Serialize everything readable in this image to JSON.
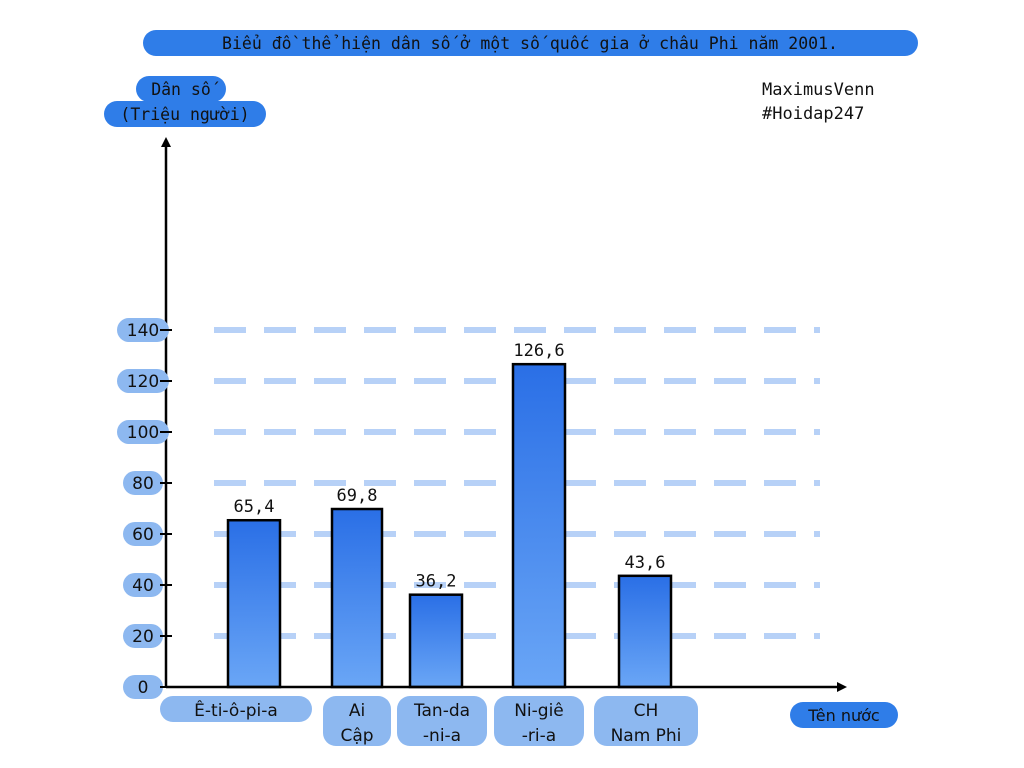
{
  "credit": {
    "author": "MaximusVenn",
    "tag": "#Hoidap247"
  },
  "colors": {
    "accent": "#2f7de8",
    "tick_pill": "#8db8f0",
    "grid": "#b7d1f7",
    "bar_top": "#2a6fe6",
    "bar_bottom": "#6aa6f6"
  },
  "chart_data": {
    "type": "bar",
    "title": "Biểu đồ thể hiện dân số ở một số quốc gia ở châu Phi năm 2001.",
    "ylabel": [
      "Dân số",
      "(Triệu người)"
    ],
    "xlabel": "Tên nước",
    "categories": [
      [
        "Ê-ti-ô-pi-a"
      ],
      [
        "Ai",
        "Cập"
      ],
      [
        "Tan-da",
        "-ni-a"
      ],
      [
        "Ni-giê",
        "-ri-a"
      ],
      [
        "CH",
        "Nam Phi"
      ]
    ],
    "values": [
      65.4,
      69.8,
      36.2,
      126.6,
      43.6
    ],
    "value_labels": [
      "65,4",
      "69,8",
      "36,2",
      "126,6",
      "43,6"
    ],
    "yticks": [
      "0",
      "20",
      "40",
      "60",
      "80",
      "100",
      "120",
      "140"
    ],
    "ylim": [
      0,
      140
    ],
    "grid": true
  }
}
